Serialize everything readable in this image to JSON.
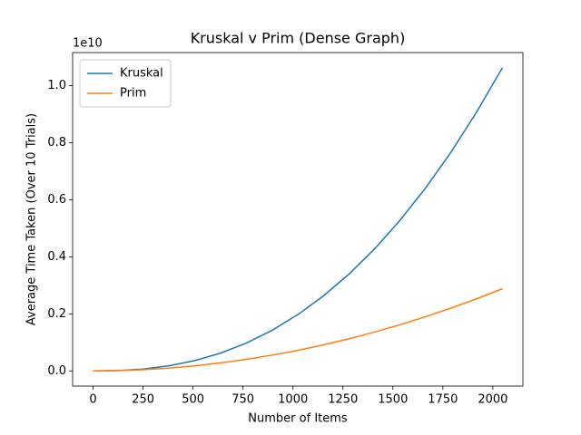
{
  "chart_data": {
    "type": "line",
    "title": "Kruskal v Prim (Dense Graph)",
    "x_label": "Number of Items",
    "y_label": "Average Time Taken (Over 10 Trials)",
    "y_offset_text": "1e10",
    "x": [
      0,
      128,
      256,
      384,
      512,
      640,
      768,
      896,
      1024,
      1152,
      1280,
      1408,
      1536,
      1664,
      1792,
      1920,
      2048
    ],
    "series": [
      {
        "name": "Kruskal",
        "color": "#1f77b4",
        "values": [
          0,
          12600000,
          67900000,
          182000000,
          366000000,
          629000000,
          980000000,
          1425000000,
          1973000000,
          2627000000,
          3392000000,
          4276000000,
          5283000000,
          6418000000,
          7684000000,
          9088000000,
          10630000000
        ]
      },
      {
        "name": "Prim",
        "color": "#ff7f0e",
        "values": [
          0,
          11200000,
          45000000,
          101000000,
          180000000,
          281000000,
          405000000,
          551000000,
          720000000,
          911000000,
          1125000000,
          1361000000,
          1620000000,
          1901000000,
          2205000000,
          2531000000,
          2880000000
        ]
      }
    ],
    "xlim": [
      -102.4,
      2150.4
    ],
    "ylim": [
      -531500000,
      11161500000
    ],
    "xticks": [
      0,
      250,
      500,
      750,
      1000,
      1250,
      1500,
      1750,
      2000
    ],
    "yticks": [
      {
        "value": 0,
        "label": "0.0"
      },
      {
        "value": 2000000000,
        "label": "0.2"
      },
      {
        "value": 4000000000,
        "label": "0.4"
      },
      {
        "value": 6000000000,
        "label": "0.6"
      },
      {
        "value": 8000000000,
        "label": "0.8"
      },
      {
        "value": 10000000000,
        "label": "1.0"
      }
    ],
    "legend": "upper left",
    "grid": false
  }
}
